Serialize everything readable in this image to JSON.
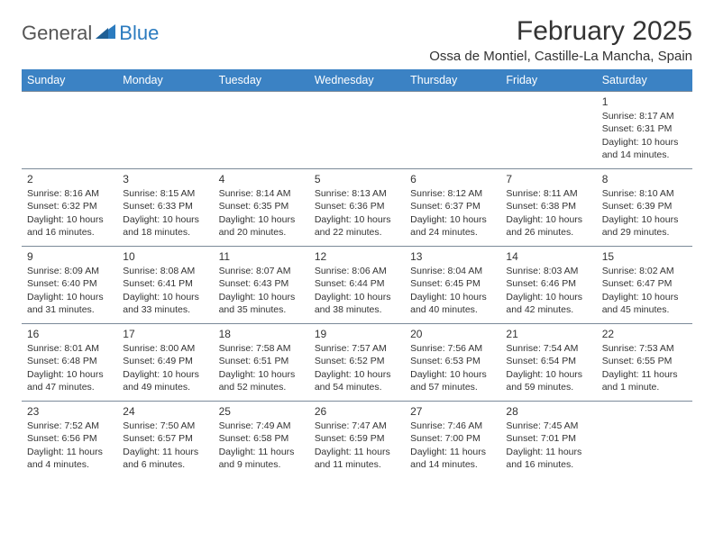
{
  "logo": {
    "general": "General",
    "blue": "Blue"
  },
  "title": "February 2025",
  "location": "Ossa de Montiel, Castille-La Mancha, Spain",
  "colors": {
    "header_bg": "#3b82c4",
    "header_text": "#ffffff",
    "border": "#7b8a99",
    "text": "#333333",
    "logo_blue": "#2b7bbf",
    "logo_gray": "#555555",
    "page_bg": "#ffffff"
  },
  "typography": {
    "title_fontsize": 30,
    "location_fontsize": 15,
    "dayheader_fontsize": 12.5,
    "daynum_fontsize": 12,
    "body_fontsize": 10.5
  },
  "day_headers": [
    "Sunday",
    "Monday",
    "Tuesday",
    "Wednesday",
    "Thursday",
    "Friday",
    "Saturday"
  ],
  "weeks": [
    [
      null,
      null,
      null,
      null,
      null,
      null,
      {
        "n": "1",
        "sunrise": "8:17 AM",
        "sunset": "6:31 PM",
        "daylight": "10 hours and 14 minutes."
      }
    ],
    [
      {
        "n": "2",
        "sunrise": "8:16 AM",
        "sunset": "6:32 PM",
        "daylight": "10 hours and 16 minutes."
      },
      {
        "n": "3",
        "sunrise": "8:15 AM",
        "sunset": "6:33 PM",
        "daylight": "10 hours and 18 minutes."
      },
      {
        "n": "4",
        "sunrise": "8:14 AM",
        "sunset": "6:35 PM",
        "daylight": "10 hours and 20 minutes."
      },
      {
        "n": "5",
        "sunrise": "8:13 AM",
        "sunset": "6:36 PM",
        "daylight": "10 hours and 22 minutes."
      },
      {
        "n": "6",
        "sunrise": "8:12 AM",
        "sunset": "6:37 PM",
        "daylight": "10 hours and 24 minutes."
      },
      {
        "n": "7",
        "sunrise": "8:11 AM",
        "sunset": "6:38 PM",
        "daylight": "10 hours and 26 minutes."
      },
      {
        "n": "8",
        "sunrise": "8:10 AM",
        "sunset": "6:39 PM",
        "daylight": "10 hours and 29 minutes."
      }
    ],
    [
      {
        "n": "9",
        "sunrise": "8:09 AM",
        "sunset": "6:40 PM",
        "daylight": "10 hours and 31 minutes."
      },
      {
        "n": "10",
        "sunrise": "8:08 AM",
        "sunset": "6:41 PM",
        "daylight": "10 hours and 33 minutes."
      },
      {
        "n": "11",
        "sunrise": "8:07 AM",
        "sunset": "6:43 PM",
        "daylight": "10 hours and 35 minutes."
      },
      {
        "n": "12",
        "sunrise": "8:06 AM",
        "sunset": "6:44 PM",
        "daylight": "10 hours and 38 minutes."
      },
      {
        "n": "13",
        "sunrise": "8:04 AM",
        "sunset": "6:45 PM",
        "daylight": "10 hours and 40 minutes."
      },
      {
        "n": "14",
        "sunrise": "8:03 AM",
        "sunset": "6:46 PM",
        "daylight": "10 hours and 42 minutes."
      },
      {
        "n": "15",
        "sunrise": "8:02 AM",
        "sunset": "6:47 PM",
        "daylight": "10 hours and 45 minutes."
      }
    ],
    [
      {
        "n": "16",
        "sunrise": "8:01 AM",
        "sunset": "6:48 PM",
        "daylight": "10 hours and 47 minutes."
      },
      {
        "n": "17",
        "sunrise": "8:00 AM",
        "sunset": "6:49 PM",
        "daylight": "10 hours and 49 minutes."
      },
      {
        "n": "18",
        "sunrise": "7:58 AM",
        "sunset": "6:51 PM",
        "daylight": "10 hours and 52 minutes."
      },
      {
        "n": "19",
        "sunrise": "7:57 AM",
        "sunset": "6:52 PM",
        "daylight": "10 hours and 54 minutes."
      },
      {
        "n": "20",
        "sunrise": "7:56 AM",
        "sunset": "6:53 PM",
        "daylight": "10 hours and 57 minutes."
      },
      {
        "n": "21",
        "sunrise": "7:54 AM",
        "sunset": "6:54 PM",
        "daylight": "10 hours and 59 minutes."
      },
      {
        "n": "22",
        "sunrise": "7:53 AM",
        "sunset": "6:55 PM",
        "daylight": "11 hours and 1 minute."
      }
    ],
    [
      {
        "n": "23",
        "sunrise": "7:52 AM",
        "sunset": "6:56 PM",
        "daylight": "11 hours and 4 minutes."
      },
      {
        "n": "24",
        "sunrise": "7:50 AM",
        "sunset": "6:57 PM",
        "daylight": "11 hours and 6 minutes."
      },
      {
        "n": "25",
        "sunrise": "7:49 AM",
        "sunset": "6:58 PM",
        "daylight": "11 hours and 9 minutes."
      },
      {
        "n": "26",
        "sunrise": "7:47 AM",
        "sunset": "6:59 PM",
        "daylight": "11 hours and 11 minutes."
      },
      {
        "n": "27",
        "sunrise": "7:46 AM",
        "sunset": "7:00 PM",
        "daylight": "11 hours and 14 minutes."
      },
      {
        "n": "28",
        "sunrise": "7:45 AM",
        "sunset": "7:01 PM",
        "daylight": "11 hours and 16 minutes."
      },
      null
    ]
  ]
}
